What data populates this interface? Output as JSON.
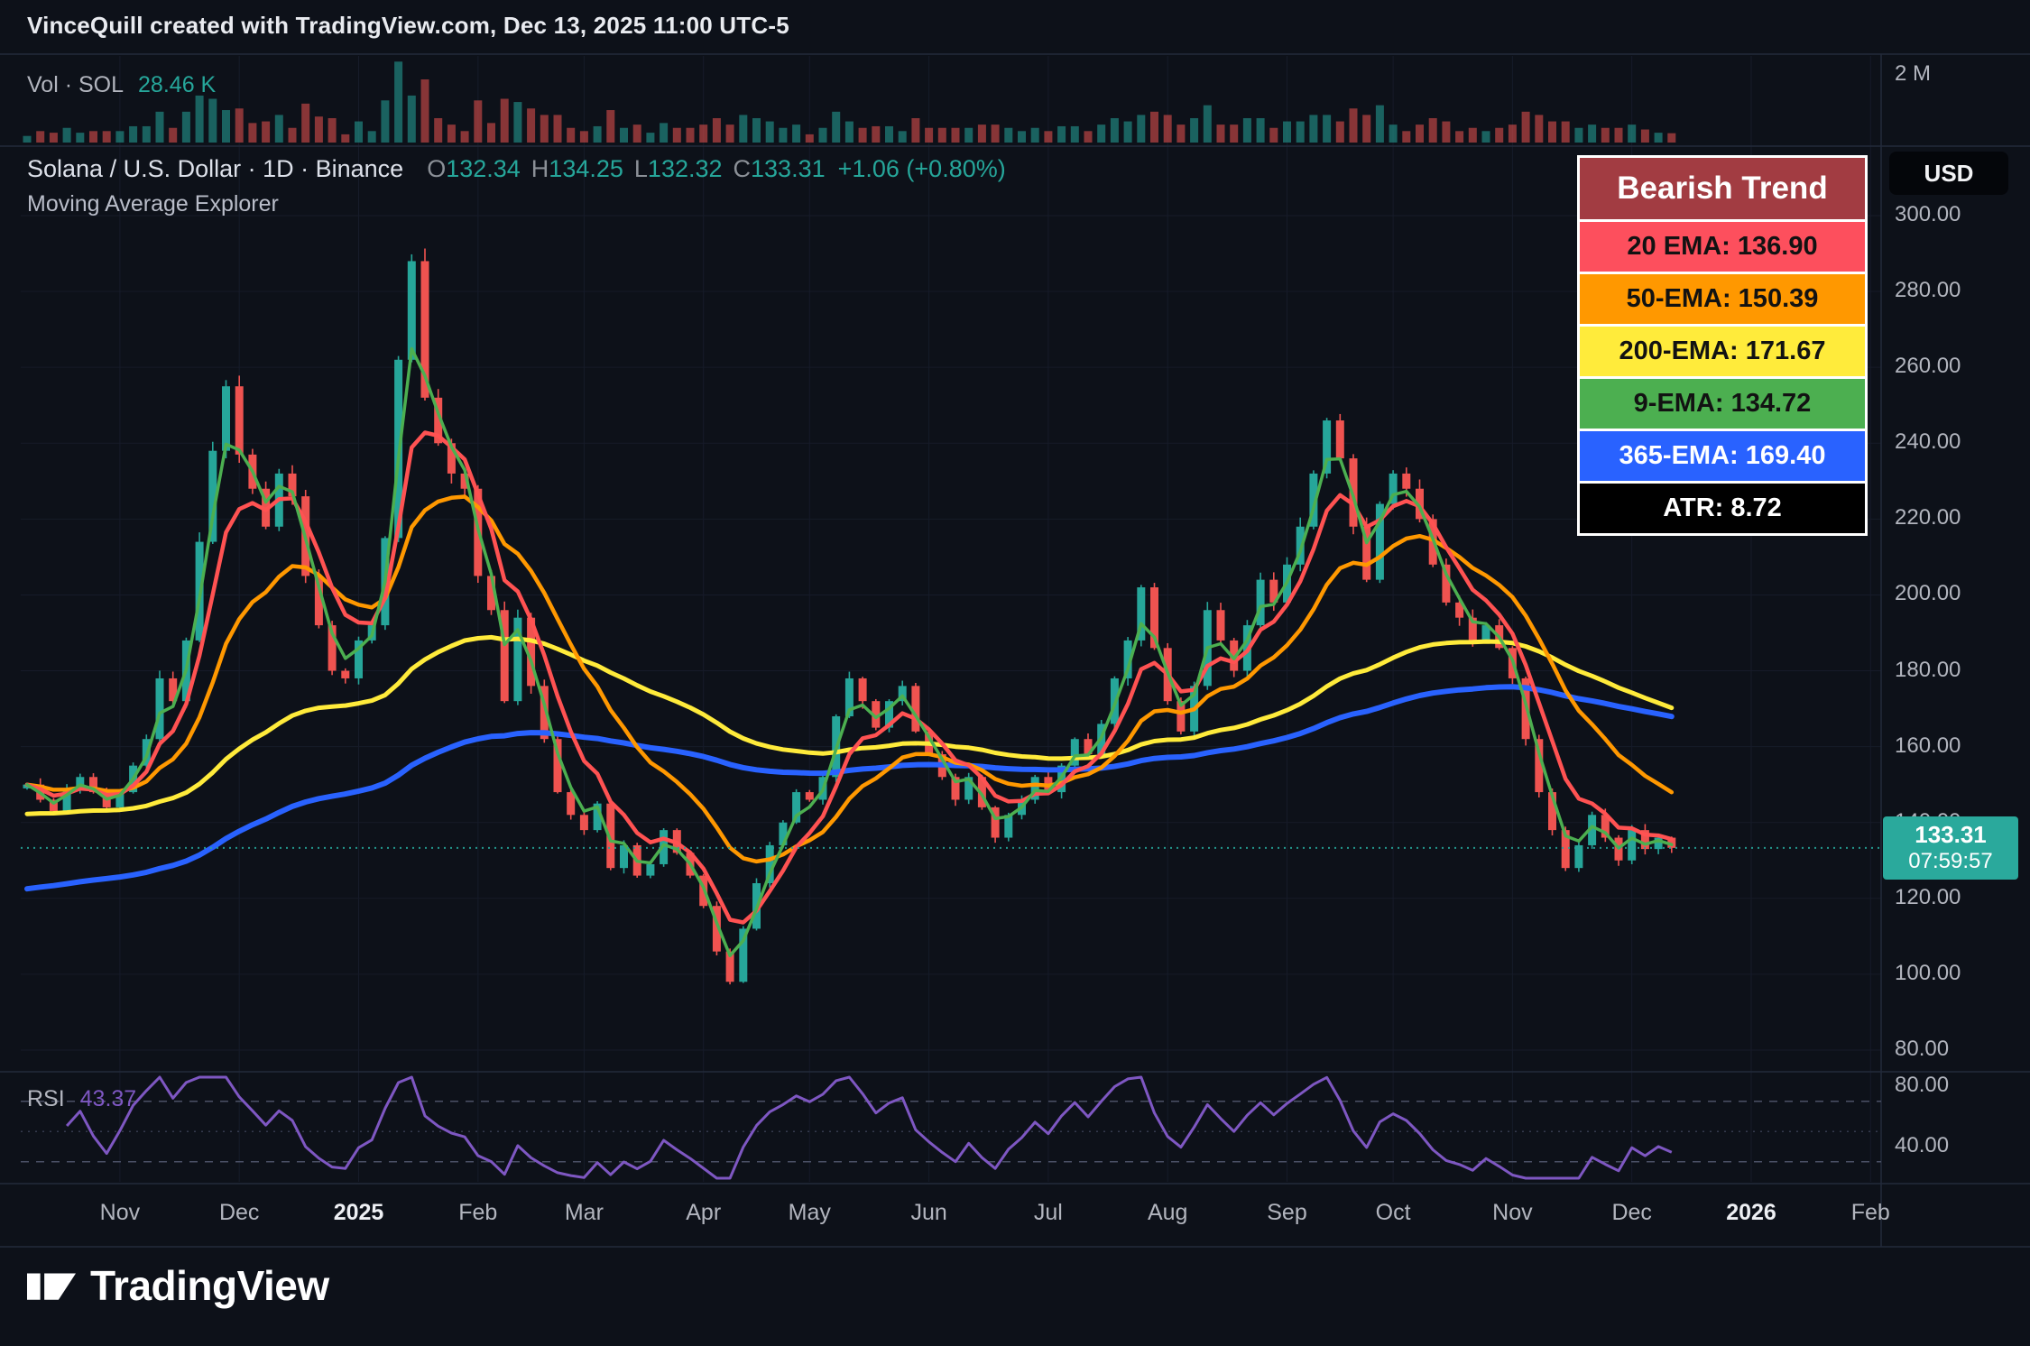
{
  "attribution": "VinceQuill created with TradingView.com, Dec 13, 2025 11:00 UTC-5",
  "volume_pane": {
    "label": "Vol · SOL",
    "value": "28.46 K",
    "axis_label": "2 M"
  },
  "symbol_header": {
    "title": "Solana / U.S. Dollar · 1D · Binance",
    "o_label": "O",
    "o": "132.34",
    "h_label": "H",
    "h": "134.25",
    "l_label": "L",
    "l": "132.32",
    "c_label": "C",
    "c": "133.31",
    "change": "+1.06 (+0.80%)",
    "indicator": "Moving Average Explorer"
  },
  "legend": {
    "title": "Bearish Trend",
    "title_bg": "#a23c42",
    "rows": [
      {
        "label": "20 EMA: 136.90",
        "bg": "#fd4f5d",
        "fg": "#121212"
      },
      {
        "label": "50-EMA: 150.39",
        "bg": "#ff9800",
        "fg": "#121212"
      },
      {
        "label": "200-EMA: 171.67",
        "bg": "#ffeb3b",
        "fg": "#121212"
      },
      {
        "label": "9-EMA: 134.72",
        "bg": "#4caf50",
        "fg": "#121212"
      },
      {
        "label": "365-EMA: 169.40",
        "bg": "#2962ff",
        "fg": "#ffffff"
      },
      {
        "label": "ATR: 8.72",
        "bg": "#000000",
        "fg": "#ffffff"
      }
    ]
  },
  "currency_button": "USD",
  "price_badge": {
    "price": "133.31",
    "countdown": "07:59:57",
    "bg": "#2aa99c",
    "fg": "#ffffff"
  },
  "rsi_pane": {
    "label": "RSI",
    "value": "43.37",
    "color": "#7e57c2"
  },
  "footer": {
    "brand": "TradingView"
  },
  "chart_data": {
    "type": "candlestick",
    "symbol": "Solana / U.S. Dollar",
    "exchange": "Binance",
    "interval": "1D",
    "trend": "Bearish Trend",
    "current": {
      "open": 132.34,
      "high": 134.25,
      "low": 132.32,
      "close": 133.31,
      "change": 1.06,
      "change_pct": 0.8,
      "volume": "28.46 K"
    },
    "atr": 8.72,
    "last_price": 133.31,
    "first_open": 149,
    "price_ticks": [
      300,
      280,
      260,
      240,
      220,
      200,
      180,
      160,
      140,
      120,
      100,
      80
    ],
    "rsi_ticks": [
      80,
      40
    ],
    "rsi_bands": [
      70,
      50,
      30
    ],
    "rsi_current": 43.37,
    "rsi_period": 5,
    "volume_axis_max": 2000000,
    "colors": {
      "up": "#26a69a",
      "down": "#ef5350"
    },
    "closes": [
      150,
      146,
      143,
      149,
      152,
      148,
      144,
      148,
      155,
      162,
      178,
      172,
      188,
      214,
      238,
      255,
      237,
      228,
      218,
      232,
      226,
      205,
      192,
      180,
      178,
      188,
      192,
      215,
      262,
      288,
      252,
      240,
      232,
      228,
      205,
      196,
      172,
      194,
      176,
      162,
      148,
      142,
      138,
      145,
      128,
      134,
      126,
      129,
      138,
      132,
      126,
      118,
      106,
      98,
      112,
      124,
      134,
      140,
      148,
      146,
      152,
      168,
      178,
      172,
      165,
      172,
      176,
      164,
      158,
      152,
      146,
      152,
      144,
      136,
      142,
      146,
      152,
      148,
      155,
      162,
      158,
      166,
      178,
      188,
      202,
      186,
      172,
      164,
      176,
      196,
      188,
      180,
      192,
      204,
      198,
      208,
      218,
      232,
      246,
      236,
      218,
      204,
      224,
      232,
      228,
      220,
      208,
      198,
      194,
      188,
      192,
      186,
      178,
      162,
      148,
      138,
      128,
      134,
      142,
      136,
      130,
      138,
      133,
      136,
      133.31
    ],
    "months": [
      {
        "label": "Nov",
        "i": 7
      },
      {
        "label": "Dec",
        "i": 16
      },
      {
        "label": "2025",
        "i": 25,
        "bold": true
      },
      {
        "label": "Feb",
        "i": 34
      },
      {
        "label": "Mar",
        "i": 42
      },
      {
        "label": "Apr",
        "i": 51
      },
      {
        "label": "May",
        "i": 59
      },
      {
        "label": "Jun",
        "i": 68
      },
      {
        "label": "Jul",
        "i": 77
      },
      {
        "label": "Aug",
        "i": 86
      },
      {
        "label": "Sep",
        "i": 95
      },
      {
        "label": "Oct",
        "i": 103
      },
      {
        "label": "Nov",
        "i": 112
      },
      {
        "label": "Dec",
        "i": 121
      },
      {
        "label": "2026",
        "i": 130,
        "bold": true
      },
      {
        "label": "Feb",
        "i": 139
      }
    ],
    "emas": [
      {
        "name": "365-EMA",
        "value": 169.4,
        "color": "#2962ff",
        "period": 104,
        "width": 6,
        "seed": 122
      },
      {
        "name": "200-EMA",
        "value": 171.67,
        "color": "#ffeb3b",
        "period": 57,
        "width": 5,
        "seed": 142
      },
      {
        "name": "50-EMA",
        "value": 150.39,
        "color": "#ff9800",
        "period": 14.3,
        "width": 4.5
      },
      {
        "name": "20-EMA",
        "value": 136.9,
        "color": "#ff5252",
        "period": 5.7,
        "width": 4.5
      },
      {
        "name": "9-EMA",
        "value": 134.72,
        "color": "#4caf50",
        "period": 2.6,
        "width": 3.5
      }
    ]
  }
}
